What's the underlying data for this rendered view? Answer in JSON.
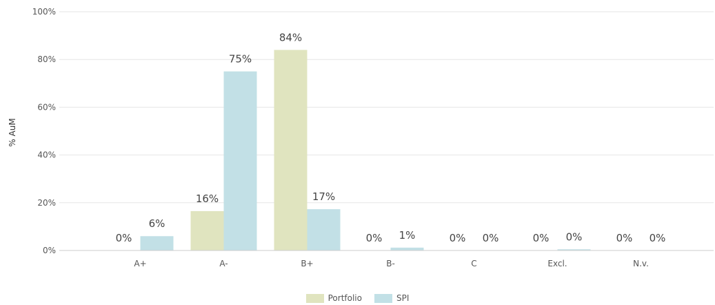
{
  "chart_data": {
    "type": "bar",
    "ylabel": "% AuM",
    "ylim": [
      0,
      100
    ],
    "yticks": [
      "0%",
      "20%",
      "40%",
      "60%",
      "80%",
      "100%"
    ],
    "categories": [
      "A+",
      "A-",
      "B+",
      "B-",
      "C",
      "Excl.",
      "N.v."
    ],
    "series": [
      {
        "name": "Portfolio",
        "color": "#e0e4bf",
        "values": [
          0,
          16.5,
          84,
          0,
          0,
          0,
          0
        ],
        "labels": [
          "0%",
          "16%",
          "84%",
          "0%",
          "0%",
          "0%",
          "0%"
        ]
      },
      {
        "name": "SPI",
        "color": "#c2e0e6",
        "values": [
          6,
          75,
          17.3,
          1.2,
          0,
          0.5,
          0
        ],
        "labels": [
          "6%",
          "75%",
          "17%",
          "1%",
          "0%",
          "0%",
          "0%"
        ]
      }
    ],
    "grid": true,
    "legend_position": "bottom-center"
  }
}
